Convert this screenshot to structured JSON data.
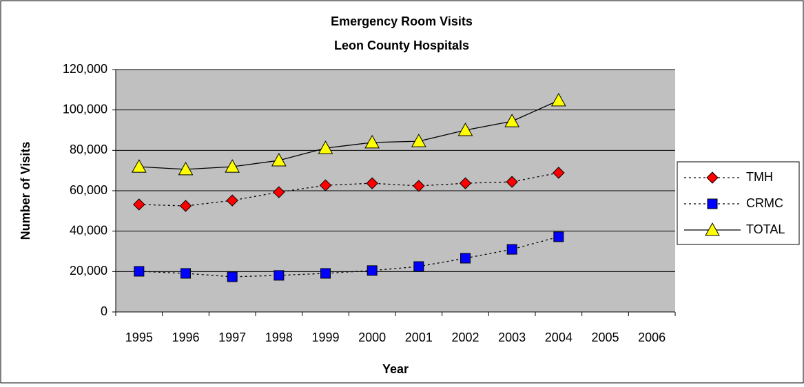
{
  "chart_data": {
    "type": "line",
    "title": "Emergency Room Visits",
    "subtitle": "Leon County Hospitals",
    "xlabel": "Year",
    "ylabel": "Number of Visits",
    "categories": [
      "1995",
      "1996",
      "1997",
      "1998",
      "1999",
      "2000",
      "2001",
      "2002",
      "2003",
      "2004",
      "2005",
      "2006"
    ],
    "series": [
      {
        "name": "TMH",
        "color": "#ff0000",
        "marker": "diamond",
        "dash": "dotted",
        "values": [
          53200,
          52500,
          55200,
          59300,
          62700,
          63700,
          62400,
          63700,
          64400,
          68900,
          null,
          null
        ]
      },
      {
        "name": "CRMC",
        "color": "#0000ff",
        "marker": "square",
        "dash": "dotted",
        "values": [
          20100,
          19100,
          17400,
          18100,
          19100,
          20500,
          22500,
          26600,
          31000,
          37200,
          null,
          null
        ]
      },
      {
        "name": "TOTAL",
        "color": "#ffff00",
        "marker": "triangle",
        "dash": "solid",
        "values": [
          71900,
          70600,
          71900,
          75000,
          81100,
          83900,
          84500,
          90000,
          94400,
          104700,
          null,
          null
        ]
      }
    ],
    "ylim": [
      0,
      120000
    ],
    "yticks": [
      0,
      {
        "value": 20000,
        "label": "20,000"
      },
      {
        "value": 40000,
        "label": "40,000"
      },
      {
        "value": 60000,
        "label": "60,000"
      },
      {
        "value": 80000,
        "label": "80,000"
      },
      {
        "value": 100000,
        "label": "100,000"
      },
      {
        "value": 120000,
        "label": "120,000"
      }
    ],
    "grid": true,
    "legend": "right"
  }
}
